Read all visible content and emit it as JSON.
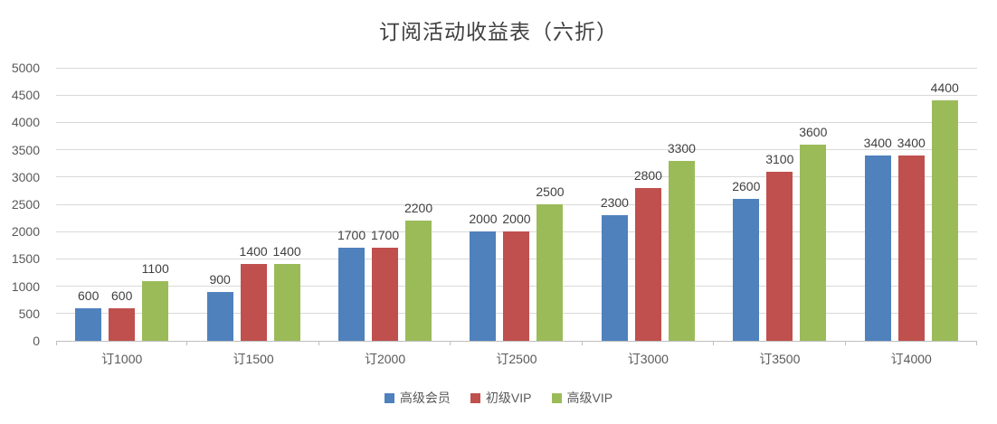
{
  "chart_data": {
    "type": "bar",
    "title": "订阅活动收益表（六折）",
    "categories": [
      "订1000",
      "订1500",
      "订2000",
      "订2500",
      "订3000",
      "订3500",
      "订4000"
    ],
    "series": [
      {
        "name": "高级会员",
        "color": "#4F81BD",
        "values": [
          600,
          900,
          1700,
          2000,
          2300,
          2600,
          3400
        ]
      },
      {
        "name": "初级VIP",
        "color": "#C0504D",
        "values": [
          600,
          1400,
          1700,
          2000,
          2800,
          3100,
          3400
        ]
      },
      {
        "name": "高级VIP",
        "color": "#9BBB59",
        "values": [
          1100,
          1400,
          2200,
          2500,
          3300,
          3600,
          4400
        ]
      }
    ],
    "xlabel": "",
    "ylabel": "",
    "ylim": [
      0,
      5000
    ],
    "ytick_step": 500,
    "grid": true,
    "legend_position": "bottom",
    "colors": {
      "gridline": "#d9d9d9",
      "axis_line": "#bfbfbf",
      "axis_text": "#595959",
      "title_text": "#404040",
      "data_label_text": "#404040"
    }
  }
}
